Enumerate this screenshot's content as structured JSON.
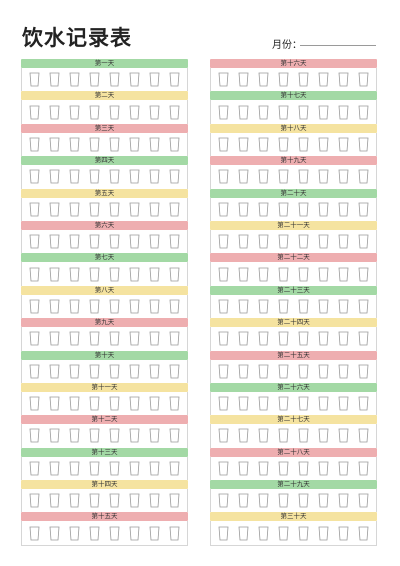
{
  "title": "饮水记录表",
  "month_label": "月份：",
  "cups_per_day": 8,
  "colors": {
    "green": "#a3d9a5",
    "yellow": "#f5e3a0",
    "pink": "#eeaeb0"
  },
  "left_days": [
    {
      "label": "第一天",
      "color": "green"
    },
    {
      "label": "第二天",
      "color": "yellow"
    },
    {
      "label": "第三天",
      "color": "pink"
    },
    {
      "label": "第四天",
      "color": "green"
    },
    {
      "label": "第五天",
      "color": "yellow"
    },
    {
      "label": "第六天",
      "color": "pink"
    },
    {
      "label": "第七天",
      "color": "green"
    },
    {
      "label": "第八天",
      "color": "yellow"
    },
    {
      "label": "第九天",
      "color": "pink"
    },
    {
      "label": "第十天",
      "color": "green"
    },
    {
      "label": "第十一天",
      "color": "yellow"
    },
    {
      "label": "第十二天",
      "color": "pink"
    },
    {
      "label": "第十三天",
      "color": "green"
    },
    {
      "label": "第十四天",
      "color": "yellow"
    },
    {
      "label": "第十五天",
      "color": "pink"
    }
  ],
  "right_days": [
    {
      "label": "第十六天",
      "color": "pink"
    },
    {
      "label": "第十七天",
      "color": "green"
    },
    {
      "label": "第十八天",
      "color": "yellow"
    },
    {
      "label": "第十九天",
      "color": "pink"
    },
    {
      "label": "第二十天",
      "color": "green"
    },
    {
      "label": "第二十一天",
      "color": "yellow"
    },
    {
      "label": "第二十二天",
      "color": "pink"
    },
    {
      "label": "第二十三天",
      "color": "green"
    },
    {
      "label": "第二十四天",
      "color": "yellow"
    },
    {
      "label": "第二十五天",
      "color": "pink"
    },
    {
      "label": "第二十六天",
      "color": "green"
    },
    {
      "label": "第二十七天",
      "color": "yellow"
    },
    {
      "label": "第二十八天",
      "color": "pink"
    },
    {
      "label": "第二十九天",
      "color": "green"
    },
    {
      "label": "第三十天",
      "color": "yellow"
    }
  ]
}
